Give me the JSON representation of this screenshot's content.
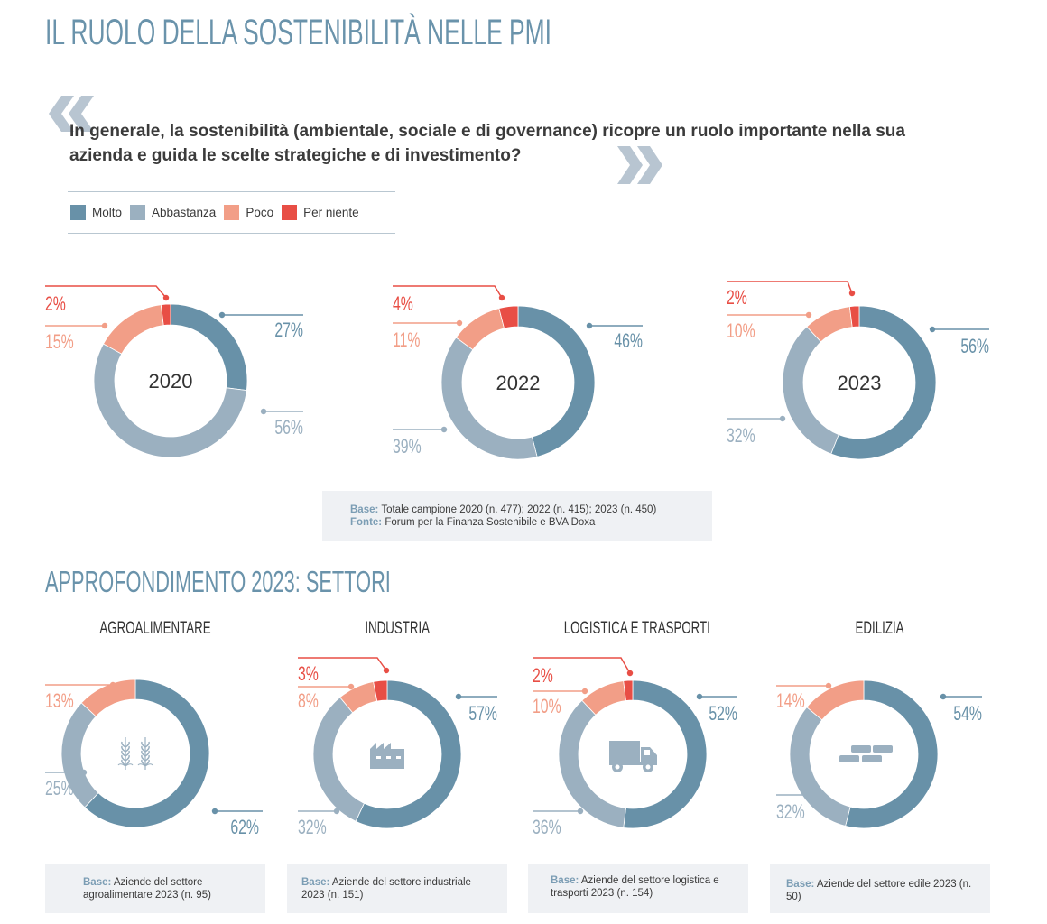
{
  "title": "IL RUOLO DELLA SOSTENIBILITÀ NELLE PMI",
  "question": "In generale, la sostenibilità (ambientale, sociale e di governance) ricopre un ruolo importante nella sua azienda e guida le scelte strategiche e di investimento?",
  "colors": {
    "molto": "#6891a8",
    "abbastanza": "#9bb0c0",
    "poco": "#f29e87",
    "per_niente": "#e84e45",
    "accent": "#6a93ab",
    "quote": "#b8c5d1"
  },
  "legend": [
    {
      "label": "Molto",
      "color": "#6891a8"
    },
    {
      "label": "Abbastanza",
      "color": "#9bb0c0"
    },
    {
      "label": "Poco",
      "color": "#f29e87"
    },
    {
      "label": "Per niente",
      "color": "#e84e45"
    }
  ],
  "year_note": {
    "base_key": "Base:",
    "base_text": "Totale campione 2020 (n. 477); 2022 (n. 415); 2023 (n. 450)",
    "source_key": "Fonte:",
    "source_text": "Forum per la Finanza Sostenibile e BVA Doxa"
  },
  "section_title": "APPROFONDIMENTO 2023: SETTORI",
  "sectors": [
    {
      "title": "AGROALIMENTARE",
      "icon": "wheat-icon",
      "base_key": "Base:",
      "base_text": "Aziende del settore agroalimentare 2023 (n. 95)"
    },
    {
      "title": "INDUSTRIA",
      "icon": "factory-icon",
      "base_key": "Base:",
      "base_text": "Aziende del settore industriale 2023 (n. 151)"
    },
    {
      "title": "LOGISTICA E TRASPORTI",
      "icon": "truck-icon",
      "base_key": "Base:",
      "base_text": "Aziende del settore logistica e trasporti 2023 (n. 154)"
    },
    {
      "title": "EDILIZIA",
      "icon": "bricks-icon",
      "base_key": "Base:",
      "base_text": "Aziende del settore edile 2023 (n. 50)"
    }
  ],
  "chart_data": [
    {
      "type": "pie",
      "title": "2020",
      "categories": [
        "Molto",
        "Abbastanza",
        "Poco",
        "Per niente"
      ],
      "values": [
        27,
        56,
        15,
        2
      ],
      "labels": [
        "27%",
        "56%",
        "15%",
        "2%"
      ]
    },
    {
      "type": "pie",
      "title": "2022",
      "categories": [
        "Molto",
        "Abbastanza",
        "Poco",
        "Per niente"
      ],
      "values": [
        46,
        39,
        11,
        4
      ],
      "labels": [
        "46%",
        "39%",
        "11%",
        "4%"
      ]
    },
    {
      "type": "pie",
      "title": "2023",
      "categories": [
        "Molto",
        "Abbastanza",
        "Poco",
        "Per niente"
      ],
      "values": [
        56,
        32,
        10,
        2
      ],
      "labels": [
        "56%",
        "32%",
        "10%",
        "2%"
      ]
    },
    {
      "type": "pie",
      "title": "AGROALIMENTARE",
      "categories": [
        "Molto",
        "Abbastanza",
        "Poco"
      ],
      "values": [
        62,
        25,
        13
      ],
      "labels": [
        "62%",
        "25%",
        "13%"
      ]
    },
    {
      "type": "pie",
      "title": "INDUSTRIA",
      "categories": [
        "Molto",
        "Abbastanza",
        "Poco",
        "Per niente"
      ],
      "values": [
        57,
        32,
        8,
        3
      ],
      "labels": [
        "57%",
        "32%",
        "8%",
        "3%"
      ]
    },
    {
      "type": "pie",
      "title": "LOGISTICA E TRASPORTI",
      "categories": [
        "Molto",
        "Abbastanza",
        "Poco",
        "Per niente"
      ],
      "values": [
        52,
        36,
        10,
        2
      ],
      "labels": [
        "52%",
        "36%",
        "10%",
        "2%"
      ]
    },
    {
      "type": "pie",
      "title": "EDILIZIA",
      "categories": [
        "Molto",
        "Abbastanza",
        "Poco"
      ],
      "values": [
        54,
        32,
        14
      ],
      "labels": [
        "54%",
        "32%",
        "14%"
      ]
    }
  ]
}
